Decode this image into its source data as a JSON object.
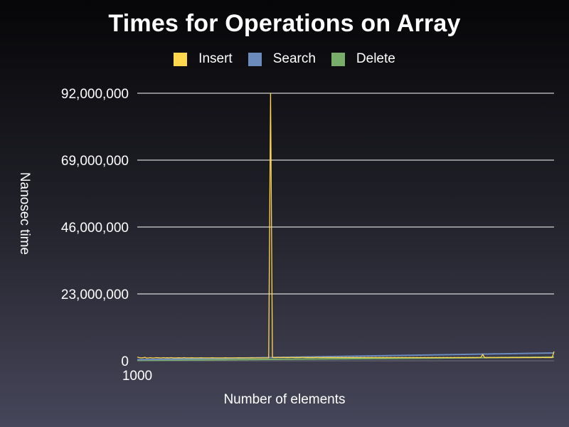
{
  "chart_data": {
    "type": "line",
    "title": "Times for Operations on Array",
    "xlabel": "Number of elements",
    "ylabel": "Nanosec time",
    "x_tick_labels": [
      "1000"
    ],
    "y_ticks": [
      0,
      23000000,
      46000000,
      69000000,
      92000000
    ],
    "y_tick_labels": [
      "0",
      "23,000,000",
      "46,000,000",
      "69,000,000",
      "92,000,000"
    ],
    "ylim": [
      0,
      92000000
    ],
    "grid": true,
    "legend_position": "top",
    "series": [
      {
        "name": "Insert",
        "color": "#ffd84e",
        "values": [
          1300000,
          1100000,
          1000000,
          1050000,
          1200000,
          950000,
          1000000,
          1100000,
          980000,
          1000000,
          1100000,
          1050000,
          1000000,
          1000000,
          1100000,
          1000000,
          1050000,
          1000000,
          1100000,
          1000000,
          1000000,
          1000000,
          1050000,
          1000000,
          1000000,
          1100000,
          1000000,
          1000000,
          1000000,
          1050000,
          1000000,
          1000000,
          1000000,
          1000000,
          1050000,
          1000000,
          1000000,
          1000000,
          1000000,
          1000000,
          1050000,
          1000000,
          1000000,
          1000000,
          1000000,
          1000000,
          1000000,
          1050000,
          1000000,
          1000000,
          1000000,
          1000000,
          1000000,
          1000000,
          1050000,
          1000000,
          1000000,
          1000000,
          1000000,
          1000000,
          1000000,
          1050000,
          1000000,
          1000000,
          1000000,
          1000000,
          1000000,
          1000000,
          1000000,
          1000000,
          1000000,
          92000000,
          1200000,
          1100000,
          1150000,
          1200000,
          1100000,
          1150000,
          1200000,
          1100000,
          1150000,
          1100000,
          1200000,
          1150000,
          1100000,
          1150000,
          1100000,
          1150000,
          1200000,
          1150000,
          1100000,
          1150000,
          1100000,
          1150000,
          1100000,
          1150000,
          1200000,
          1100000,
          1100000,
          1150000,
          1100000,
          1150000,
          1100000,
          1150000,
          1100000,
          1150000,
          1100000,
          1150000,
          1100000,
          1150000,
          1100000,
          1150000,
          1100000,
          1150000,
          1100000,
          1150000,
          1100000,
          1150000,
          1100000,
          1150000,
          1100000,
          1150000,
          1100000,
          1150000,
          1100000,
          1150000,
          1100000,
          1150000,
          1100000,
          1150000,
          1100000,
          1150000,
          1100000,
          1150000,
          1100000,
          1150000,
          1100000,
          1150000,
          1100000,
          1150000,
          1100000,
          1150000,
          1100000,
          1150000,
          1100000,
          1150000,
          1100000,
          1150000,
          1100000,
          1150000,
          1100000,
          1150000,
          1100000,
          1150000,
          1100000,
          1150000,
          1100000,
          1150000,
          1100000,
          1150000,
          1100000,
          1150000,
          1100000,
          1150000,
          1100000,
          1150000,
          1100000,
          1150000,
          1100000,
          1150000,
          1100000,
          1150000,
          1100000,
          1150000,
          1100000,
          1150000,
          1100000,
          1150000,
          1100000,
          1150000,
          1100000,
          1150000,
          1100000,
          1150000,
          2200000,
          1100000,
          1150000,
          1100000,
          1150000,
          1100000,
          1150000,
          1100000,
          1150000,
          1100000,
          1150000,
          1100000,
          1150000,
          1100000,
          1150000,
          1100000,
          1150000,
          1100000,
          1150000,
          1100000,
          1150000,
          1100000,
          1150000,
          1100000,
          1150000,
          1100000,
          1150000,
          1100000,
          1150000,
          1100000,
          1150000,
          1100000,
          1150000,
          1100000,
          1150000,
          1100000,
          1150000,
          1100000,
          3200000
        ]
      },
      {
        "name": "Search",
        "color": "#6b8bbd",
        "values": [
          400000,
          410000,
          420000,
          430000,
          440000,
          450000,
          460000,
          470000,
          480000,
          490000,
          500000,
          510000,
          520000,
          530000,
          540000,
          550000,
          560000,
          570000,
          580000,
          590000,
          600000,
          610000,
          620000,
          630000,
          640000,
          650000,
          660000,
          670000,
          680000,
          690000,
          700000,
          710000,
          720000,
          730000,
          740000,
          750000,
          760000,
          770000,
          780000,
          790000,
          800000,
          810000,
          820000,
          830000,
          840000,
          850000,
          860000,
          870000,
          880000,
          890000,
          900000,
          910000,
          920000,
          930000,
          940000,
          950000,
          960000,
          970000,
          980000,
          990000,
          1000000,
          1010000,
          1020000,
          1030000,
          1040000,
          1050000,
          1060000,
          1070000,
          1080000,
          1090000,
          1100000,
          1110000,
          1120000,
          1130000,
          1140000,
          1150000,
          1160000,
          1170000,
          1180000,
          1190000,
          1200000,
          1210000,
          1220000,
          1230000,
          1240000,
          1250000,
          1260000,
          1270000,
          1280000,
          1290000,
          1300000,
          1310000,
          1320000,
          1330000,
          1340000,
          1350000,
          1360000,
          1370000,
          1380000,
          1390000,
          1400000,
          1410000,
          1420000,
          1430000,
          1440000,
          1450000,
          1460000,
          1470000,
          1480000,
          1490000,
          1500000,
          1510000,
          1520000,
          1530000,
          1540000,
          1550000,
          1560000,
          1570000,
          1580000,
          1590000,
          1600000,
          1610000,
          1620000,
          1630000,
          1640000,
          1650000,
          1660000,
          1670000,
          1680000,
          1690000,
          1700000,
          1710000,
          1720000,
          1730000,
          1740000,
          1750000,
          1760000,
          1770000,
          1780000,
          1790000,
          1800000,
          1810000,
          1820000,
          1830000,
          1840000,
          1850000,
          1860000,
          1870000,
          1880000,
          1890000,
          1900000,
          1910000,
          1920000,
          1930000,
          1940000,
          1950000,
          1960000,
          1970000,
          1980000,
          1990000,
          2000000,
          2010000,
          2020000,
          2030000,
          2040000,
          2050000,
          2060000,
          2070000,
          2080000,
          2090000,
          2100000,
          2110000,
          2120000,
          2130000,
          2140000,
          2150000,
          2160000,
          2170000,
          2180000,
          2190000,
          2200000,
          2210000,
          2220000,
          2230000,
          2240000,
          2250000,
          2260000,
          2270000,
          2280000,
          2290000,
          2300000,
          2310000,
          2320000,
          2330000,
          2340000,
          2350000,
          2360000,
          2370000,
          2380000,
          2390000,
          2400000,
          2410000,
          2420000,
          2430000,
          2440000,
          2450000,
          2460000,
          2470000,
          2480000,
          2490000,
          2500000,
          2510000,
          2520000,
          2530000,
          2540000,
          2550000,
          2560000,
          2570000,
          2580000,
          2590000,
          2600000,
          2610000,
          2620000,
          2630000,
          2640000,
          2650000,
          2660000,
          2670000,
          2680000,
          2690000,
          2700000
        ]
      },
      {
        "name": "Delete",
        "color": "#79ae6a",
        "values": [
          150000,
          150000,
          160000,
          160000,
          170000,
          170000,
          180000,
          180000,
          190000,
          190000,
          200000,
          200000,
          210000,
          210000,
          220000,
          220000,
          230000,
          230000,
          240000,
          240000,
          250000,
          250000,
          260000,
          260000,
          270000,
          270000,
          280000,
          280000,
          290000,
          290000,
          300000,
          300000,
          310000,
          310000,
          320000,
          320000,
          330000,
          330000,
          340000,
          340000,
          350000,
          350000,
          360000,
          360000,
          370000,
          370000,
          380000,
          380000,
          390000,
          390000,
          400000,
          400000,
          410000,
          410000,
          420000,
          420000,
          430000,
          430000,
          440000,
          440000,
          450000,
          450000,
          460000,
          460000,
          470000,
          470000,
          480000,
          480000,
          490000,
          490000,
          500000,
          500000,
          510000,
          510000,
          520000,
          520000,
          530000,
          530000,
          540000,
          540000,
          550000,
          550000,
          560000,
          560000,
          570000,
          570000,
          580000,
          580000,
          590000,
          590000,
          600000,
          600000,
          610000,
          610000,
          620000,
          620000,
          630000,
          630000,
          640000,
          640000,
          650000,
          650000,
          660000,
          660000,
          670000,
          670000,
          680000,
          680000,
          690000,
          690000,
          700000,
          700000,
          710000,
          710000,
          720000,
          720000,
          730000,
          730000,
          740000,
          740000,
          750000,
          750000,
          760000,
          760000,
          770000,
          770000,
          780000,
          780000,
          790000,
          790000,
          800000,
          800000,
          810000,
          810000,
          820000,
          820000,
          830000,
          830000,
          840000,
          840000,
          850000,
          850000,
          860000,
          860000,
          870000,
          870000,
          880000,
          880000,
          890000,
          890000,
          900000,
          900000,
          910000,
          910000,
          920000,
          920000,
          930000,
          930000,
          940000,
          940000,
          950000,
          950000,
          960000,
          960000,
          970000,
          970000,
          980000,
          980000,
          990000,
          990000,
          1000000,
          1000000,
          1010000,
          1010000,
          1020000,
          1020000,
          1030000,
          1030000,
          1040000,
          1040000,
          1050000,
          1050000,
          1060000,
          1060000,
          1070000,
          1070000,
          1080000,
          1080000,
          1090000,
          1090000,
          1100000,
          1100000,
          1110000,
          1110000,
          1120000,
          1120000,
          1130000,
          1130000,
          1140000,
          1140000,
          1150000,
          1150000,
          1160000,
          1160000,
          1170000,
          1170000,
          1180000,
          1180000,
          1190000,
          1190000,
          1200000,
          1200000,
          1210000,
          1210000,
          1220000,
          1220000,
          1230000,
          1230000,
          1240000,
          1240000,
          1250000,
          1250000,
          1260000,
          1260000
        ]
      }
    ]
  }
}
